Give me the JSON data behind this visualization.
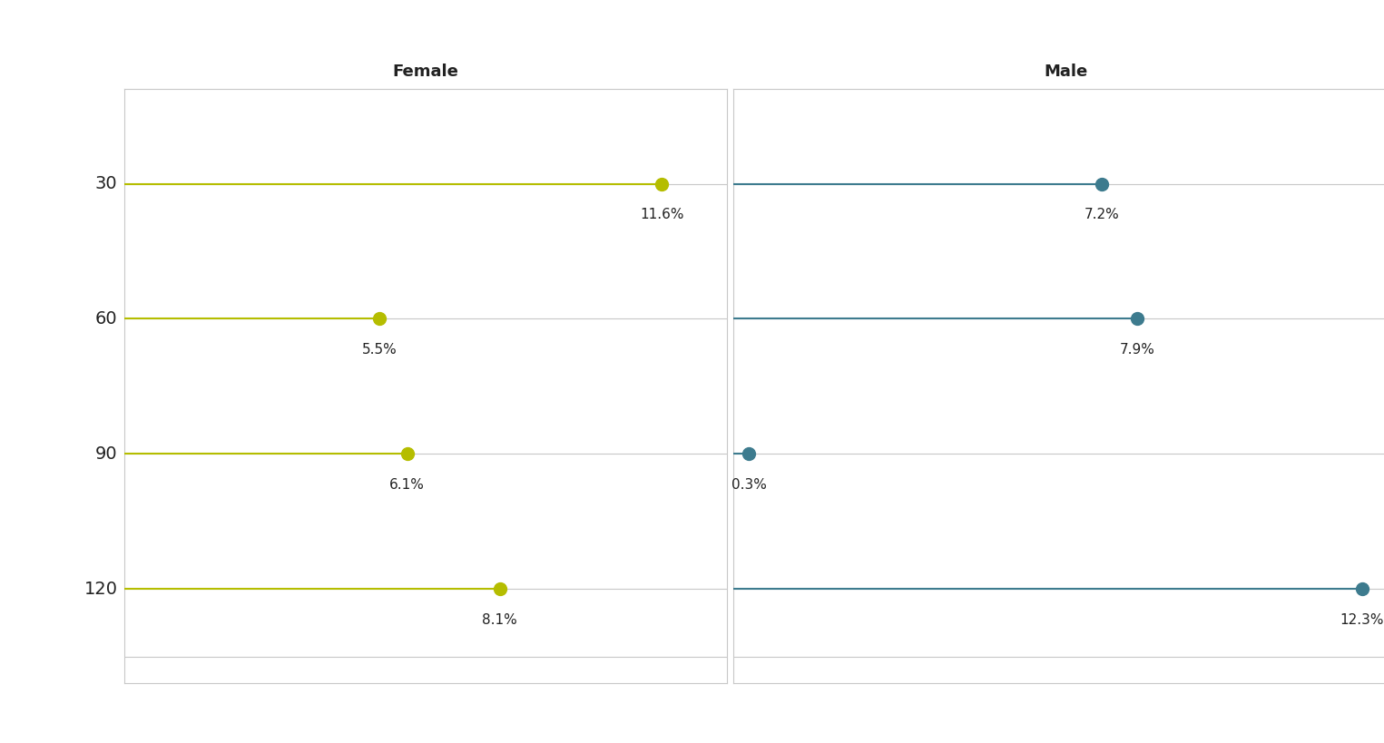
{
  "panels": [
    "Female",
    "Male"
  ],
  "rows": [
    30,
    60,
    90,
    120
  ],
  "female_values": [
    11.6,
    5.5,
    6.1,
    8.1
  ],
  "male_values": [
    7.2,
    7.9,
    0.3,
    12.3
  ],
  "female_color": "#b5bd00",
  "male_color": "#3d7b8e",
  "dot_size": 100,
  "background_color": "#ffffff",
  "grid_color": "#c8c8c8",
  "title_fontsize": 13,
  "label_fontsize": 11,
  "tick_fontsize": 14,
  "ylabel_color": "#222222",
  "header_color": "#222222",
  "panel_title_fontweight": "bold",
  "max_val": 13.0,
  "line_width": 1.5
}
